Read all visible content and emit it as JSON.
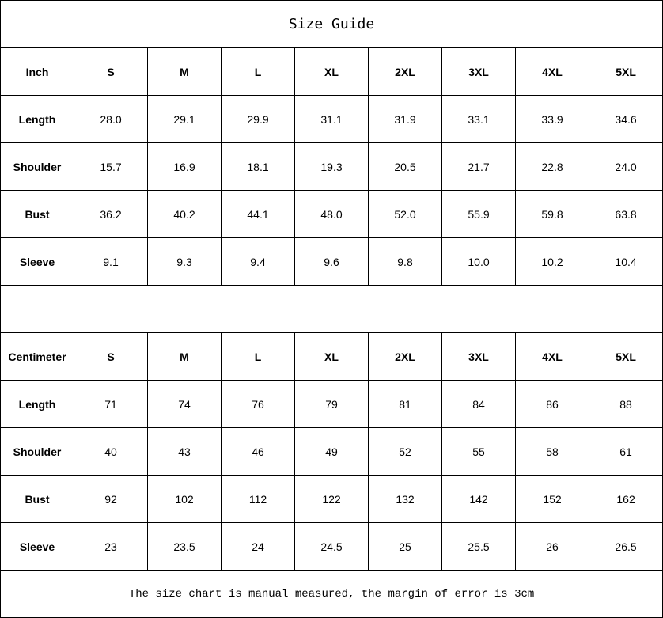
{
  "title": "Size Guide",
  "sizes": [
    "S",
    "M",
    "L",
    "XL",
    "2XL",
    "3XL",
    "4XL",
    "5XL"
  ],
  "tables": [
    {
      "unit": "Inch",
      "rows": [
        {
          "label": "Length",
          "values": [
            "28.0",
            "29.1",
            "29.9",
            "31.1",
            "31.9",
            "33.1",
            "33.9",
            "34.6"
          ]
        },
        {
          "label": "Shoulder",
          "values": [
            "15.7",
            "16.9",
            "18.1",
            "19.3",
            "20.5",
            "21.7",
            "22.8",
            "24.0"
          ]
        },
        {
          "label": "Bust",
          "values": [
            "36.2",
            "40.2",
            "44.1",
            "48.0",
            "52.0",
            "55.9",
            "59.8",
            "63.8"
          ]
        },
        {
          "label": "Sleeve",
          "values": [
            "9.1",
            "9.3",
            "9.4",
            "9.6",
            "9.8",
            "10.0",
            "10.2",
            "10.4"
          ]
        }
      ]
    },
    {
      "unit": "Centimeter",
      "rows": [
        {
          "label": "Length",
          "values": [
            "71",
            "74",
            "76",
            "79",
            "81",
            "84",
            "86",
            "88"
          ]
        },
        {
          "label": "Shoulder",
          "values": [
            "40",
            "43",
            "46",
            "49",
            "52",
            "55",
            "58",
            "61"
          ]
        },
        {
          "label": "Bust",
          "values": [
            "92",
            "102",
            "112",
            "122",
            "132",
            "142",
            "152",
            "162"
          ]
        },
        {
          "label": "Sleeve",
          "values": [
            "23",
            "23.5",
            "24",
            "24.5",
            "25",
            "25.5",
            "26",
            "26.5"
          ]
        }
      ]
    }
  ],
  "note": "The size chart is manual measured, the margin of error is 3cm"
}
